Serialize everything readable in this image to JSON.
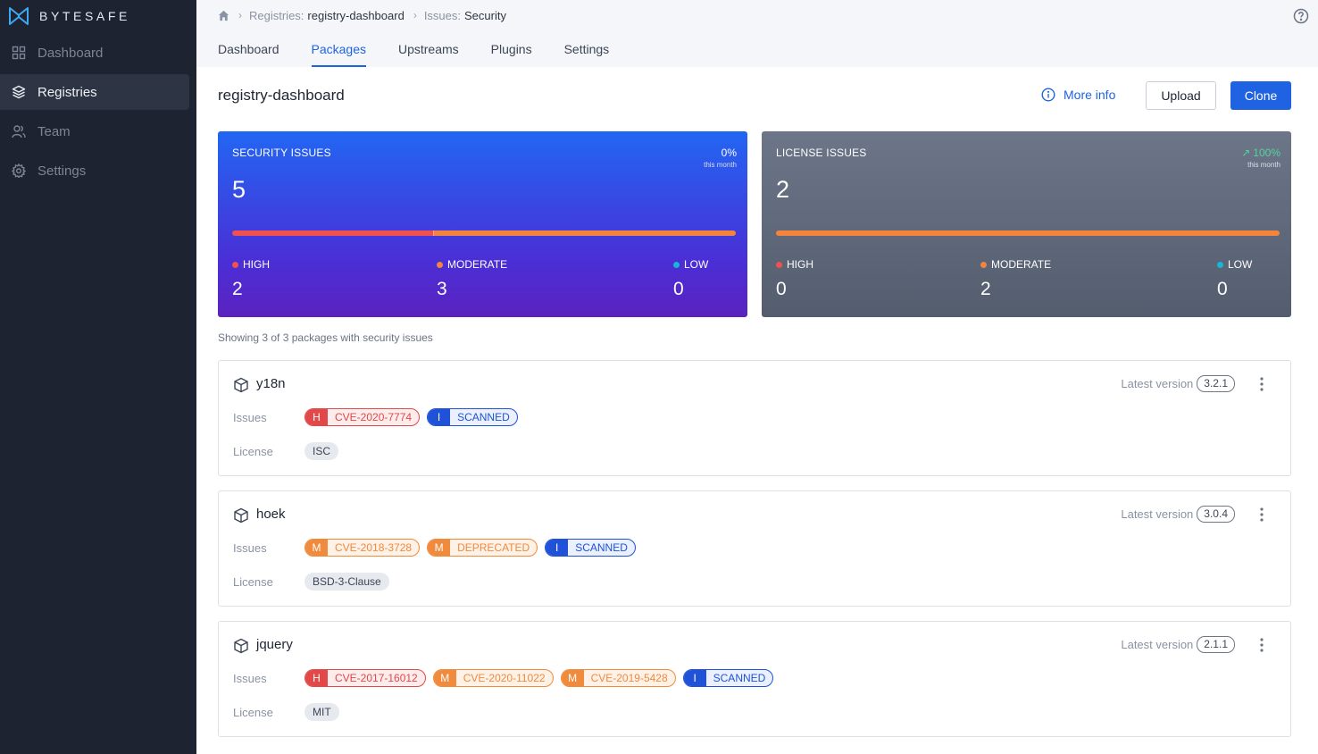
{
  "brand": {
    "name": "BYTESAFE"
  },
  "sidebar": {
    "items": [
      {
        "label": "Dashboard",
        "icon": "grid-icon",
        "active": false
      },
      {
        "label": "Registries",
        "icon": "layers-icon",
        "active": true
      },
      {
        "label": "Team",
        "icon": "users-icon",
        "active": false
      },
      {
        "label": "Settings",
        "icon": "gear-icon",
        "active": false
      }
    ]
  },
  "breadcrumb": {
    "registries_label": "Registries:",
    "registries_value": "registry-dashboard",
    "issues_label": "Issues:",
    "issues_value": "Security"
  },
  "tabs": [
    {
      "label": "Dashboard",
      "active": false
    },
    {
      "label": "Packages",
      "active": true
    },
    {
      "label": "Upstreams",
      "active": false
    },
    {
      "label": "Plugins",
      "active": false
    },
    {
      "label": "Settings",
      "active": false
    }
  ],
  "header": {
    "title": "registry-dashboard",
    "more_info": "More info",
    "upload": "Upload",
    "clone": "Clone"
  },
  "security_card": {
    "title": "SECURITY ISSUES",
    "change": "0%",
    "change_sub": "this month",
    "total": "5",
    "high_label": "HIGH",
    "high": "2",
    "moderate_label": "MODERATE",
    "moderate": "3",
    "low_label": "LOW",
    "low": "0",
    "bar": {
      "high": 2,
      "moderate": 3,
      "low": 0
    }
  },
  "license_card": {
    "title": "LICENSE ISSUES",
    "change": "100%",
    "change_arrow": "↗",
    "change_sub": "this month",
    "total": "2",
    "high_label": "HIGH",
    "high": "0",
    "moderate_label": "MODERATE",
    "moderate": "2",
    "low_label": "LOW",
    "low": "0",
    "bar": {
      "high": 0,
      "moderate": 2,
      "low": 0
    }
  },
  "showing": "Showing 3 of 3 packages with security issues",
  "packages": [
    {
      "name": "y18n",
      "latest_label": "Latest version",
      "version": "3.2.1",
      "issues_label": "Issues",
      "license_label": "License",
      "license": "ISC",
      "issues": [
        {
          "sev": "H",
          "label": "CVE-2020-7774"
        },
        {
          "sev": "I",
          "label": "SCANNED"
        }
      ]
    },
    {
      "name": "hoek",
      "latest_label": "Latest version",
      "version": "3.0.4",
      "issues_label": "Issues",
      "license_label": "License",
      "license": "BSD-3-Clause",
      "issues": [
        {
          "sev": "M",
          "label": "CVE-2018-3728"
        },
        {
          "sev": "M",
          "label": "DEPRECATED"
        },
        {
          "sev": "I",
          "label": "SCANNED"
        }
      ]
    },
    {
      "name": "jquery",
      "latest_label": "Latest version",
      "version": "2.1.1",
      "issues_label": "Issues",
      "license_label": "License",
      "license": "MIT",
      "issues": [
        {
          "sev": "H",
          "label": "CVE-2017-16012"
        },
        {
          "sev": "M",
          "label": "CVE-2020-11022"
        },
        {
          "sev": "M",
          "label": "CVE-2019-5428"
        },
        {
          "sev": "I",
          "label": "SCANNED"
        }
      ]
    }
  ],
  "colors": {
    "accent": "#1f63e2",
    "sidebar": "#1d2331",
    "high": "#e24848",
    "moderate": "#f08a3d",
    "low": "#16b7d3",
    "info": "#1f52d8"
  }
}
